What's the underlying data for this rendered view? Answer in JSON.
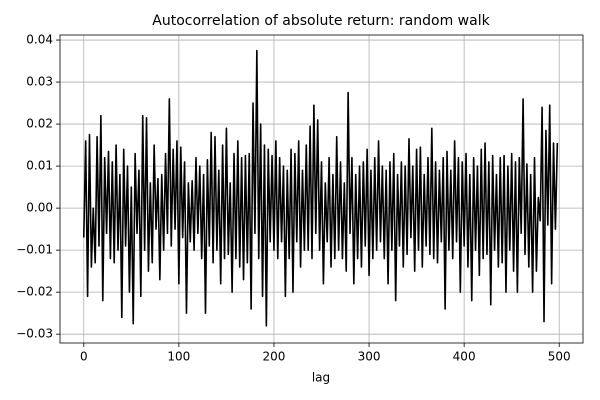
{
  "chart_data": {
    "type": "line",
    "title": "Autocorrelation of absolute return: random walk",
    "xlabel": "lag",
    "color": "#000000",
    "grid": true,
    "xlim": [
      -25,
      525
    ],
    "xticks": [
      0,
      100,
      200,
      300,
      400,
      500
    ],
    "ylim": [
      -0.0321,
      0.0412
    ],
    "yticks": [
      {
        "value": -0.03,
        "label": "−0.03"
      },
      {
        "value": -0.02,
        "label": "−0.02"
      },
      {
        "value": -0.01,
        "label": "−0.01"
      },
      {
        "value": 0,
        "label": "0.00"
      },
      0.01,
      0.02,
      0.03,
      0.04
    ],
    "x": [
      0,
      2,
      4,
      6,
      8,
      10,
      12,
      14,
      16,
      18,
      20,
      22,
      24,
      26,
      28,
      30,
      32,
      34,
      36,
      38,
      40,
      42,
      44,
      46,
      48,
      50,
      52,
      54,
      56,
      58,
      60,
      62,
      64,
      66,
      68,
      70,
      72,
      74,
      76,
      78,
      80,
      82,
      84,
      86,
      88,
      90,
      92,
      94,
      96,
      98,
      100,
      102,
      104,
      106,
      108,
      110,
      112,
      114,
      116,
      118,
      120,
      122,
      124,
      126,
      128,
      130,
      132,
      134,
      136,
      138,
      140,
      142,
      144,
      146,
      148,
      150,
      152,
      154,
      156,
      158,
      160,
      162,
      164,
      166,
      168,
      170,
      172,
      174,
      176,
      178,
      180,
      182,
      184,
      186,
      188,
      190,
      192,
      194,
      196,
      198,
      200,
      202,
      204,
      206,
      208,
      210,
      212,
      214,
      216,
      218,
      220,
      222,
      224,
      226,
      228,
      230,
      232,
      234,
      236,
      238,
      240,
      242,
      244,
      246,
      248,
      250,
      252,
      254,
      256,
      258,
      260,
      262,
      264,
      266,
      268,
      270,
      272,
      274,
      276,
      278,
      280,
      282,
      284,
      286,
      288,
      290,
      292,
      294,
      296,
      298,
      300,
      302,
      304,
      306,
      308,
      310,
      312,
      314,
      316,
      318,
      320,
      322,
      324,
      326,
      328,
      330,
      332,
      334,
      336,
      338,
      340,
      342,
      344,
      346,
      348,
      350,
      352,
      354,
      356,
      358,
      360,
      362,
      364,
      366,
      368,
      370,
      372,
      374,
      376,
      378,
      380,
      382,
      384,
      386,
      388,
      390,
      392,
      394,
      396,
      398,
      400,
      402,
      404,
      406,
      408,
      410,
      412,
      414,
      416,
      418,
      420,
      422,
      424,
      426,
      428,
      430,
      432,
      434,
      436,
      438,
      440,
      442,
      444,
      446,
      448,
      450,
      452,
      454,
      456,
      458,
      460,
      462,
      464,
      466,
      468,
      470,
      472,
      474,
      476,
      478,
      480,
      482,
      484,
      486,
      488,
      490,
      492,
      494,
      496,
      498
    ],
    "values": [
      -0.007,
      0.016,
      -0.021,
      0.0175,
      -0.014,
      0.0,
      -0.013,
      0.017,
      -0.009,
      0.022,
      -0.022,
      0.012,
      -0.006,
      0.0135,
      -0.012,
      0.011,
      -0.013,
      0.015,
      -0.01,
      0.008,
      -0.026,
      0.014,
      -0.009,
      0.01,
      -0.02,
      0.005,
      -0.0275,
      0.013,
      -0.006,
      0.009,
      -0.021,
      0.022,
      -0.01,
      0.0215,
      -0.015,
      0.006,
      -0.013,
      0.015,
      -0.005,
      0.007,
      -0.017,
      0.008,
      -0.01,
      0.013,
      -0.006,
      0.026,
      -0.009,
      0.014,
      -0.005,
      0.016,
      -0.018,
      0.0145,
      -0.007,
      0.011,
      -0.025,
      0.006,
      -0.008,
      0.0065,
      -0.01,
      0.012,
      -0.006,
      0.01,
      -0.012,
      0.008,
      -0.025,
      0.0115,
      -0.009,
      0.018,
      -0.013,
      0.017,
      -0.01,
      0.009,
      -0.018,
      0.015,
      -0.012,
      0.019,
      -0.011,
      0.006,
      -0.02,
      0.013,
      -0.012,
      0.016,
      -0.014,
      0.012,
      -0.017,
      0.0125,
      -0.013,
      0.013,
      -0.024,
      0.025,
      -0.006,
      0.0375,
      -0.012,
      0.02,
      -0.021,
      0.015,
      -0.028,
      0.014,
      -0.008,
      0.0125,
      -0.01,
      0.016,
      -0.012,
      0.012,
      -0.008,
      0.01,
      -0.021,
      0.009,
      -0.012,
      0.014,
      -0.02,
      0.013,
      -0.008,
      0.016,
      -0.014,
      0.009,
      -0.01,
      0.015,
      -0.01,
      0.0195,
      -0.012,
      0.0245,
      -0.006,
      0.021,
      -0.01,
      0.011,
      -0.018,
      0.006,
      -0.008,
      0.012,
      -0.014,
      0.008,
      -0.012,
      0.017,
      -0.01,
      0.011,
      -0.012,
      0.006,
      -0.015,
      0.0275,
      -0.006,
      0.012,
      -0.018,
      0.008,
      -0.012,
      0.01,
      -0.014,
      0.011,
      -0.009,
      0.014,
      -0.016,
      0.009,
      -0.012,
      0.012,
      -0.01,
      0.016,
      -0.008,
      0.01,
      -0.012,
      0.009,
      -0.018,
      0.011,
      -0.01,
      0.013,
      -0.022,
      0.008,
      -0.009,
      0.011,
      -0.014,
      0.01,
      -0.011,
      0.0165,
      -0.007,
      0.01,
      -0.015,
      0.014,
      -0.01,
      0.0145,
      -0.014,
      0.008,
      -0.009,
      0.012,
      -0.011,
      0.019,
      -0.012,
      0.011,
      -0.013,
      0.009,
      -0.008,
      0.012,
      -0.024,
      0.0135,
      -0.01,
      0.009,
      -0.012,
      0.016,
      -0.008,
      0.012,
      -0.02,
      0.011,
      -0.009,
      0.013,
      -0.014,
      0.008,
      -0.022,
      0.012,
      -0.01,
      0.01,
      -0.016,
      0.014,
      -0.012,
      0.0155,
      -0.011,
      0.011,
      -0.023,
      0.0125,
      -0.01,
      0.008,
      -0.014,
      0.012,
      -0.013,
      0.0125,
      -0.02,
      0.01,
      -0.01,
      0.013,
      -0.015,
      0.011,
      -0.02,
      0.012,
      -0.006,
      0.026,
      -0.011,
      0.0105,
      -0.014,
      0.008,
      -0.02,
      0.012,
      -0.015,
      0.0025,
      -0.003,
      0.024,
      -0.027,
      0.0185,
      -0.004,
      0.0245,
      -0.018,
      0.0155,
      -0.005,
      0.0155
    ]
  }
}
